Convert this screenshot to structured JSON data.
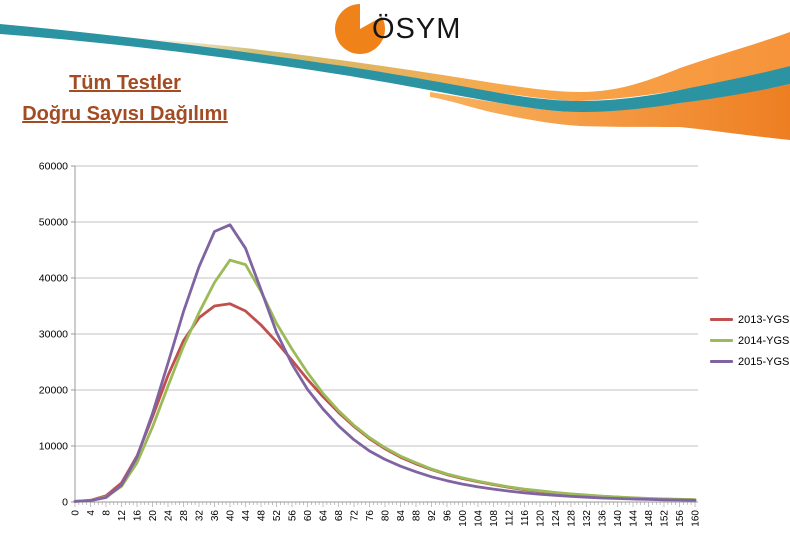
{
  "header": {
    "logo_text": "ÖSYM"
  },
  "title": {
    "line1": "Tüm Testler",
    "line2": "Doğru Sayısı Dağılımı",
    "color": "#A34B22"
  },
  "colors": {
    "teal": "#2C93A3",
    "orange": "#F6933B",
    "orange_deep": "#EE7E22",
    "orange_light": "#F8A94C",
    "olive_fade": "#C9B25A",
    "logo_orange": "#EF8218",
    "axis": "#9A9A9A",
    "gridline": "#C3C3C3",
    "label_text": "#000000"
  },
  "chart_data": {
    "type": "line",
    "title": "",
    "xlabel": "",
    "ylabel": "",
    "xlim": [
      0,
      160
    ],
    "ylim": [
      0,
      60000
    ],
    "grid": true,
    "legend_position": "right",
    "yticks": [
      0,
      10000,
      20000,
      30000,
      40000,
      50000,
      60000
    ],
    "xticks": [
      0,
      4,
      8,
      12,
      16,
      20,
      24,
      28,
      32,
      36,
      40,
      44,
      48,
      52,
      56,
      60,
      64,
      68,
      72,
      76,
      80,
      84,
      88,
      92,
      96,
      100,
      104,
      108,
      112,
      116,
      120,
      124,
      128,
      132,
      136,
      140,
      144,
      148,
      152,
      156,
      160
    ],
    "x_minor_tick_step": 1,
    "series": [
      {
        "name": "2013-YGS",
        "color": "#C0504D",
        "values": [
          100,
          300,
          1100,
          3400,
          8200,
          15200,
          22600,
          28800,
          32900,
          35000,
          35400,
          34100,
          31600,
          28600,
          25300,
          21900,
          18800,
          16000,
          13500,
          11300,
          9500,
          8000,
          6800,
          5800,
          4900,
          4200,
          3600,
          3100,
          2600,
          2200,
          1900,
          1650,
          1400,
          1200,
          1000,
          850,
          700,
          600,
          520,
          450,
          380
        ]
      },
      {
        "name": "2014-YGS",
        "color": "#9BBB59",
        "values": [
          100,
          250,
          900,
          2800,
          7000,
          13400,
          20700,
          27800,
          33800,
          39200,
          43200,
          42400,
          37600,
          31900,
          27300,
          23100,
          19400,
          16300,
          13700,
          11500,
          9700,
          8200,
          7000,
          5900,
          5000,
          4300,
          3700,
          3200,
          2700,
          2300,
          2000,
          1700,
          1450,
          1250,
          1050,
          900,
          750,
          650,
          560,
          480,
          420
        ]
      },
      {
        "name": "2015-YGS",
        "color": "#8064A2",
        "values": [
          100,
          250,
          800,
          3000,
          8000,
          15800,
          24800,
          34000,
          42000,
          48300,
          49500,
          45300,
          37900,
          30300,
          24600,
          20100,
          16600,
          13600,
          11100,
          9100,
          7600,
          6400,
          5400,
          4500,
          3800,
          3200,
          2700,
          2300,
          1950,
          1650,
          1400,
          1200,
          1000,
          850,
          720,
          620,
          530,
          460,
          400,
          350,
          300
        ]
      }
    ]
  }
}
